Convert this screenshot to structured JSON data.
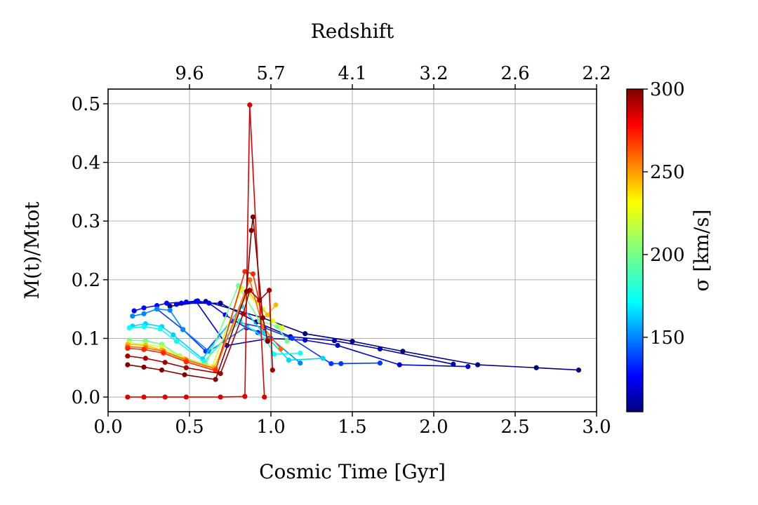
{
  "chart_data": {
    "type": "line",
    "xlabel": "Cosmic Time [Gyr]",
    "ylabel": "M(t)/Mtot",
    "top_axis_label": "Redshift",
    "colorbar_label": "σ [km/s]",
    "xlim": [
      0.0,
      3.0
    ],
    "ylim": [
      -0.025,
      0.525
    ],
    "x_ticks": [
      0.0,
      0.5,
      1.0,
      1.5,
      2.0,
      2.5,
      3.0
    ],
    "x_tick_labels": [
      "0.0",
      "0.5",
      "1.0",
      "1.5",
      "2.0",
      "2.5",
      "3.0"
    ],
    "y_ticks": [
      0.0,
      0.1,
      0.2,
      0.3,
      0.4,
      0.5
    ],
    "y_tick_labels": [
      "0.0",
      "0.1",
      "0.2",
      "0.3",
      "0.4",
      "0.5"
    ],
    "top_ticks": [
      0.5,
      1.0,
      1.5,
      2.0,
      2.5,
      3.0
    ],
    "top_tick_labels": [
      "9.6",
      "5.7",
      "4.1",
      "3.2",
      "2.6",
      "2.2"
    ],
    "colorbar": {
      "colormap": "jet",
      "range": [
        105,
        300
      ],
      "ticks": [
        150,
        200,
        250,
        300
      ],
      "tick_labels": [
        "150",
        "200",
        "250",
        "300"
      ]
    },
    "grid": true,
    "series": [
      {
        "sigma": 105,
        "x": [
          0.38,
          0.6,
          0.95,
          1.21,
          1.5,
          1.81,
          2.27,
          2.63,
          2.89
        ],
        "y": [
          0.155,
          0.163,
          0.135,
          0.108,
          0.095,
          0.078,
          0.055,
          0.05,
          0.046
        ]
      },
      {
        "sigma": 112,
        "x": [
          0.45,
          0.69,
          0.91,
          1.12,
          1.39,
          1.67,
          2.12
        ],
        "y": [
          0.16,
          0.16,
          0.128,
          0.103,
          0.096,
          0.082,
          0.056
        ]
      },
      {
        "sigma": 120,
        "x": [
          0.42,
          0.54,
          0.73,
          0.99,
          1.21,
          1.41,
          1.79,
          2.21
        ],
        "y": [
          0.158,
          0.163,
          0.088,
          0.1,
          0.097,
          0.088,
          0.055,
          0.052
        ]
      },
      {
        "sigma": 130,
        "x": [
          0.16,
          0.22,
          0.3,
          0.36,
          0.48,
          0.55,
          0.62,
          0.72,
          0.85,
          0.92
        ],
        "y": [
          0.147,
          0.152,
          0.156,
          0.16,
          0.162,
          0.164,
          0.16,
          0.14,
          0.118,
          0.11
        ]
      },
      {
        "sigma": 140,
        "x": [
          0.3,
          0.46,
          0.6,
          0.76,
          0.96,
          1.13,
          1.37,
          1.43,
          1.67
        ],
        "y": [
          0.15,
          0.115,
          0.078,
          0.13,
          0.118,
          0.1,
          0.057,
          0.057,
          0.058
        ]
      },
      {
        "sigma": 155,
        "x": [
          0.15,
          0.22,
          0.3,
          0.38,
          0.46,
          0.62,
          0.85,
          1.0,
          1.18
        ],
        "y": [
          0.138,
          0.142,
          0.15,
          0.148,
          0.115,
          0.078,
          0.12,
          0.1,
          0.058
        ]
      },
      {
        "sigma": 170,
        "x": [
          0.15,
          0.23,
          0.33,
          0.4,
          0.58,
          0.82,
          0.95,
          1.11,
          1.32
        ],
        "y": [
          0.121,
          0.125,
          0.12,
          0.106,
          0.065,
          0.155,
          0.11,
          0.063,
          0.066
        ]
      },
      {
        "sigma": 180,
        "x": [
          0.13,
          0.22,
          0.32,
          0.42,
          0.59,
          0.81,
          0.97,
          1.02,
          1.18
        ],
        "y": [
          0.118,
          0.12,
          0.116,
          0.095,
          0.06,
          0.13,
          0.098,
          0.073,
          0.075
        ]
      },
      {
        "sigma": 200,
        "x": [
          0.13,
          0.23,
          0.33,
          0.44,
          0.6,
          0.8,
          0.93,
          1.04,
          1.1
        ],
        "y": [
          0.097,
          0.096,
          0.09,
          0.07,
          0.055,
          0.19,
          0.13,
          0.12,
          0.095
        ]
      },
      {
        "sigma": 220,
        "x": [
          0.13,
          0.23,
          0.33,
          0.44,
          0.64,
          0.82,
          0.95,
          1.01,
          1.07
        ],
        "y": [
          0.092,
          0.09,
          0.085,
          0.068,
          0.052,
          0.185,
          0.15,
          0.13,
          0.118
        ]
      },
      {
        "sigma": 240,
        "x": [
          0.12,
          0.23,
          0.33,
          0.47,
          0.65,
          0.86,
          0.98,
          1.03
        ],
        "y": [
          0.09,
          0.088,
          0.08,
          0.065,
          0.05,
          0.18,
          0.14,
          0.157
        ]
      },
      {
        "sigma": 255,
        "x": [
          0.12,
          0.23,
          0.34,
          0.48,
          0.66,
          0.87,
          0.95,
          1.06
        ],
        "y": [
          0.086,
          0.084,
          0.078,
          0.063,
          0.048,
          0.2,
          0.12,
          0.082
        ]
      },
      {
        "sigma": 268,
        "x": [
          0.12,
          0.22,
          0.34,
          0.48,
          0.66,
          0.84,
          0.89,
          0.98
        ],
        "y": [
          0.083,
          0.081,
          0.075,
          0.06,
          0.045,
          0.214,
          0.21,
          0.098
        ]
      },
      {
        "sigma": 282,
        "x": [
          0.12,
          0.22,
          0.35,
          0.48,
          0.69,
          0.84,
          0.87,
          0.96
        ],
        "y": [
          0.0,
          0.0,
          0.0,
          0.0,
          0.0,
          0.001,
          0.498,
          0.0
        ]
      },
      {
        "sigma": 293,
        "x": [
          0.12,
          0.23,
          0.35,
          0.48,
          0.69,
          0.83,
          0.87,
          0.93,
          0.99,
          1.01
        ],
        "y": [
          0.07,
          0.066,
          0.059,
          0.05,
          0.04,
          0.142,
          0.182,
          0.165,
          0.182,
          0.046
        ]
      },
      {
        "sigma": 300,
        "x": [
          0.12,
          0.22,
          0.33,
          0.47,
          0.66,
          0.85,
          0.88,
          0.89,
          0.95,
          0.98
        ],
        "y": [
          0.055,
          0.051,
          0.046,
          0.038,
          0.03,
          0.18,
          0.284,
          0.307,
          0.135,
          0.095
        ]
      }
    ]
  }
}
